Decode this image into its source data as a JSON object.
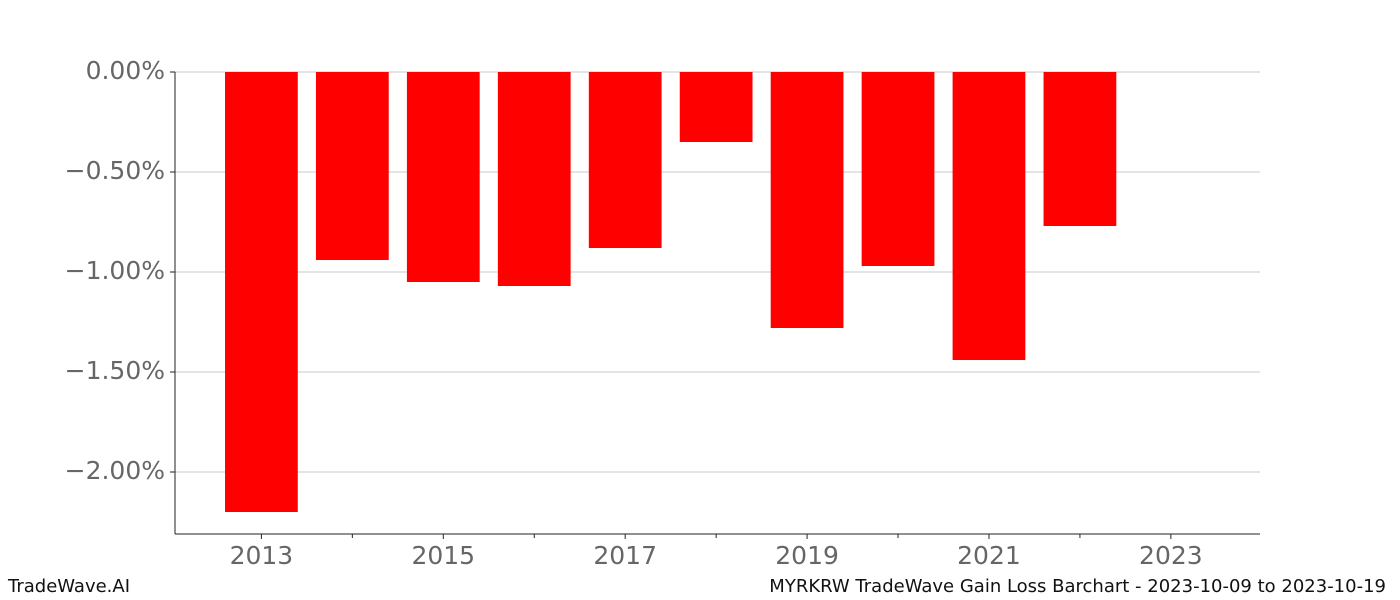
{
  "chart_data": {
    "type": "bar",
    "title": "MYRKRW TradeWave Gain Loss Barchart - 2023-10-09 to 2023-10-19",
    "watermark": "TradeWave.AI",
    "x": [
      2013,
      2014,
      2015,
      2016,
      2017,
      2018,
      2019,
      2020,
      2021,
      2022
    ],
    "values": [
      -2.2,
      -0.94,
      -1.05,
      -1.07,
      -0.88,
      -0.35,
      -1.28,
      -0.97,
      -1.44,
      -0.77
    ],
    "color": "#ff0000",
    "bar_width": 0.8,
    "xlim": [
      2012.05,
      2023.98
    ],
    "xticks": [
      2013,
      2015,
      2017,
      2019,
      2021,
      2023
    ],
    "xminorticks": [
      2014,
      2016,
      2018,
      2020,
      2022
    ],
    "ylim": [
      -2.31,
      0
    ],
    "yticks": [
      {
        "value": 0,
        "label": "0.00%"
      },
      {
        "value": -0.5,
        "label": "−0.50%"
      },
      {
        "value": -1.0,
        "label": "−1.00%"
      },
      {
        "value": -1.5,
        "label": "−1.50%"
      },
      {
        "value": -2.0,
        "label": "−2.00%"
      }
    ],
    "grid": true
  }
}
